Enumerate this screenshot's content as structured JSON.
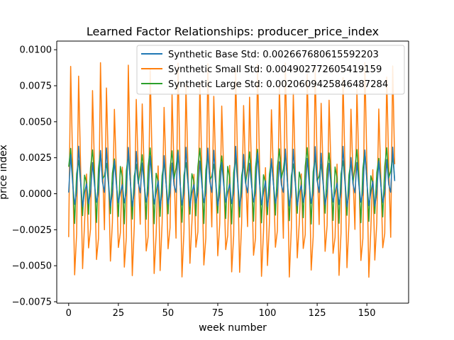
{
  "chart_data": {
    "type": "line",
    "title": "Learned Factor Relationships: producer_price_index",
    "xlabel": "week number",
    "ylabel": "price index",
    "xlim": [
      -6,
      171
    ],
    "ylim": [
      -0.0076,
      0.0106
    ],
    "x_ticks": [
      0,
      25,
      50,
      75,
      100,
      125,
      150
    ],
    "y_ticks": [
      -0.0075,
      -0.005,
      -0.0025,
      0.0,
      0.0025,
      0.005,
      0.0075,
      0.01
    ],
    "x_tick_labels": [
      "0",
      "25",
      "50",
      "75",
      "100",
      "125",
      "150"
    ],
    "y_tick_labels": [
      "−0.0075",
      "−0.0050",
      "−0.0025",
      "0.0000",
      "0.0025",
      "0.0050",
      "0.0075",
      "0.0100"
    ],
    "grid": false,
    "legend_position": "top-right",
    "x": {
      "start": 0,
      "end": 164,
      "step": 1
    },
    "series": [
      {
        "name": "Synthetic Base Std: 0.002667680615592203",
        "color": "#1f77b4",
        "period": 3.6,
        "pattern": [
          0.0001,
          0.0033,
          0.0009,
          -0.0009
        ],
        "amplitude_range": [
          0.0008,
          0.0013
        ]
      },
      {
        "name": "Synthetic Small Std: 0.004902772605419159",
        "color": "#ff7f0e",
        "period": 3.6,
        "pattern": [
          -0.0031,
          0.0091,
          0.0021,
          -0.0058
        ],
        "amplitude_range": [
          0.0083,
          0.0092
        ]
      },
      {
        "name": "Synthetic Large Std: 0.0020609425846487284",
        "color": "#2ca02c",
        "period": 3.6,
        "pattern": [
          0.0019,
          0.0032,
          0.0011,
          -0.0021
        ],
        "amplitude_range": [
          0.0014,
          0.0032
        ]
      }
    ]
  }
}
